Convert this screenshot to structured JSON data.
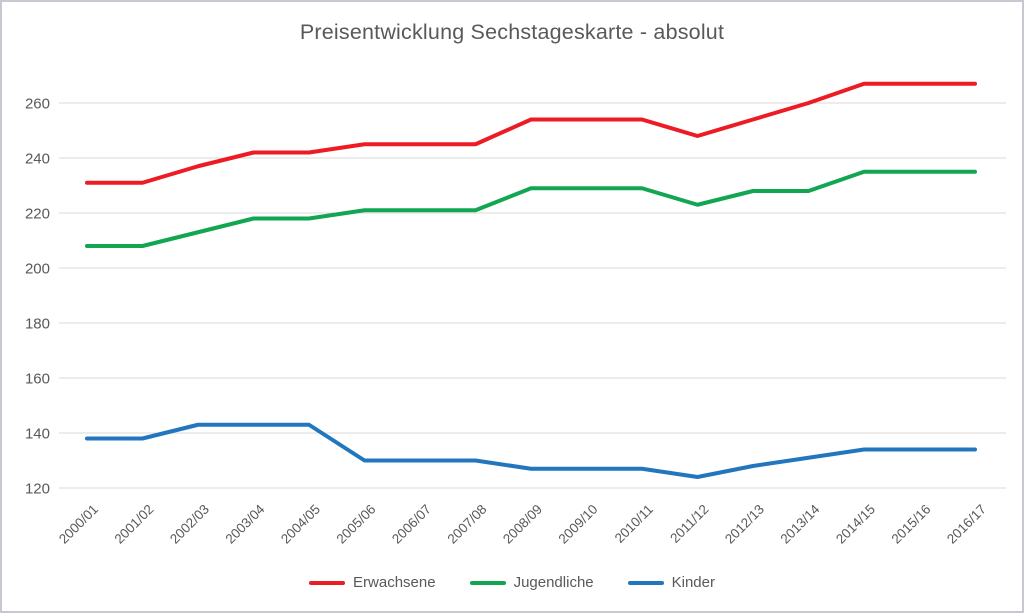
{
  "chart_data": {
    "type": "line",
    "title": "Preisentwicklung Sechstageskarte - absolut",
    "categories": [
      "2000/01",
      "2001/02",
      "2002/03",
      "2003/04",
      "2004/05",
      "2005/06",
      "2006/07",
      "2007/08",
      "2008/09",
      "2009/10",
      "2010/11",
      "2011/12",
      "2012/13",
      "2013/14",
      "2014/15",
      "2015/16",
      "2016/17"
    ],
    "series": [
      {
        "name": "Erwachsene",
        "color": "#ed1c24",
        "values": [
          231,
          231,
          237,
          242,
          242,
          245,
          245,
          245,
          254,
          254,
          254,
          248,
          254,
          260,
          267,
          267,
          267
        ]
      },
      {
        "name": "Jugendliche",
        "color": "#12a652",
        "values": [
          208,
          208,
          213,
          218,
          218,
          221,
          221,
          221,
          229,
          229,
          229,
          223,
          228,
          228,
          235,
          235,
          235
        ]
      },
      {
        "name": "Kinder",
        "color": "#2176be",
        "values": [
          138,
          138,
          143,
          143,
          143,
          130,
          130,
          130,
          127,
          127,
          127,
          124,
          128,
          131,
          134,
          134,
          134
        ]
      }
    ],
    "ylim": [
      120,
      270
    ],
    "yticks": [
      120,
      140,
      160,
      180,
      200,
      220,
      240,
      260
    ],
    "xlabel": "",
    "ylabel": "",
    "grid": true,
    "legend_position": "bottom",
    "text_color": "#595959",
    "grid_color": "#d9d9d9"
  }
}
